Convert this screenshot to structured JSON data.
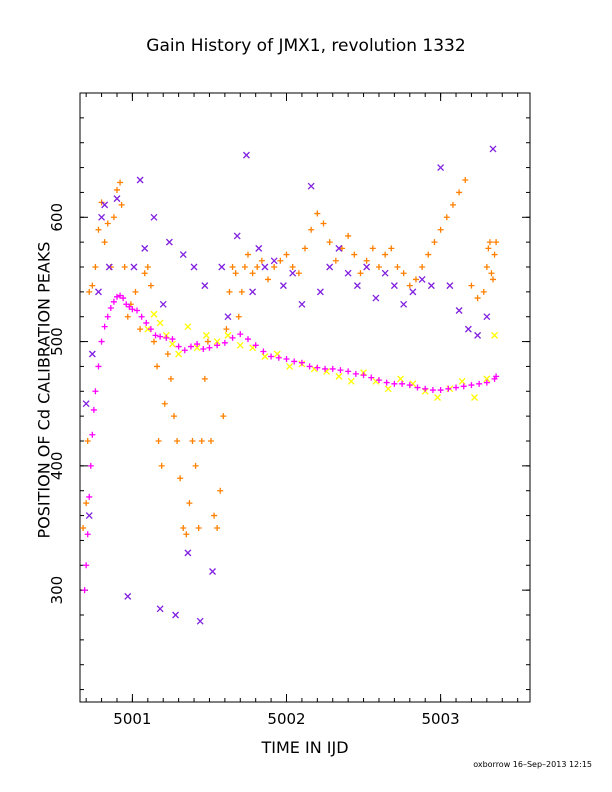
{
  "chart_data": {
    "type": "scatter",
    "title": "Gain History of JMX1, revolution 1332",
    "xlabel": "TIME IN IJD",
    "ylabel": "POSITION OF Cd CALIBRATION PEAKS",
    "xlim": [
      5000.66,
      5003.58
    ],
    "ylim": [
      210,
      700
    ],
    "xticks": [
      5001,
      5002,
      5003
    ],
    "xtick_labels": [
      "5001",
      "5002",
      "5003"
    ],
    "yticks": [
      300,
      400,
      500,
      600
    ],
    "ytick_labels": [
      "300",
      "400",
      "500",
      "600"
    ],
    "grid": false,
    "series": [
      {
        "color": "#ff8000",
        "marker": "plus",
        "description_points": "orange plus markers, dense track",
        "x": [
          5000.68,
          5000.7,
          5000.71,
          5000.72,
          5000.74,
          5000.76,
          5000.78,
          5000.8,
          5000.82,
          5000.84,
          5000.86,
          5000.88,
          5000.9,
          5000.92,
          5000.93,
          5000.95,
          5000.97,
          5000.99,
          5001.02,
          5001.05,
          5001.08,
          5001.1,
          5001.12,
          5001.14,
          5001.16,
          5001.17,
          5001.19,
          5001.21,
          5001.23,
          5001.25,
          5001.27,
          5001.29,
          5001.31,
          5001.33,
          5001.35,
          5001.37,
          5001.39,
          5001.41,
          5001.43,
          5001.45,
          5001.47,
          5001.49,
          5001.51,
          5001.53,
          5001.55,
          5001.57,
          5001.59,
          5001.61,
          5001.63,
          5001.65,
          5001.67,
          5001.69,
          5001.71,
          5001.73,
          5001.75,
          5001.78,
          5001.81,
          5001.84,
          5001.88,
          5001.92,
          5001.96,
          5002.0,
          5002.04,
          5002.08,
          5002.12,
          5002.16,
          5002.2,
          5002.24,
          5002.28,
          5002.32,
          5002.36,
          5002.4,
          5002.44,
          5002.48,
          5002.52,
          5002.56,
          5002.6,
          5002.64,
          5002.68,
          5002.72,
          5002.76,
          5002.8,
          5002.84,
          5002.88,
          5002.92,
          5002.96,
          5003.0,
          5003.04,
          5003.08,
          5003.12,
          5003.16,
          5003.2,
          5003.24,
          5003.28,
          5003.3,
          5003.31,
          5003.32,
          5003.33,
          5003.34,
          5003.35,
          5003.36
        ],
        "y": [
          350,
          370,
          420,
          540,
          545,
          560,
          590,
          612,
          580,
          595,
          560,
          600,
          622,
          628,
          610,
          560,
          520,
          530,
          540,
          510,
          555,
          560,
          545,
          500,
          480,
          420,
          400,
          450,
          490,
          470,
          440,
          420,
          390,
          350,
          345,
          370,
          420,
          400,
          350,
          420,
          470,
          500,
          420,
          360,
          350,
          380,
          440,
          510,
          540,
          560,
          555,
          520,
          540,
          560,
          570,
          555,
          560,
          565,
          550,
          560,
          565,
          570,
          560,
          555,
          575,
          590,
          603,
          595,
          580,
          565,
          575,
          585,
          570,
          555,
          565,
          575,
          560,
          570,
          575,
          560,
          555,
          545,
          550,
          560,
          570,
          580,
          590,
          600,
          610,
          620,
          630,
          545,
          535,
          540,
          560,
          575,
          580,
          555,
          550,
          570,
          580
        ]
      },
      {
        "color": "#ffff00",
        "marker": "x",
        "x": [
          5001.1,
          5001.14,
          5001.18,
          5001.22,
          5001.26,
          5001.3,
          5001.36,
          5001.42,
          5001.48,
          5001.55,
          5001.62,
          5001.7,
          5001.78,
          5001.86,
          5001.94,
          5002.02,
          5002.1,
          5002.18,
          5002.26,
          5002.34,
          5002.42,
          5002.5,
          5002.58,
          5002.66,
          5002.74,
          5002.82,
          5002.9,
          5002.98,
          5003.06,
          5003.14,
          5003.22,
          5003.3,
          5003.35
        ],
        "y": [
          510,
          522,
          515,
          505,
          498,
          490,
          512,
          495,
          505,
          500,
          505,
          497,
          495,
          488,
          490,
          480,
          482,
          478,
          476,
          472,
          468,
          475,
          468,
          462,
          470,
          466,
          460,
          455,
          462,
          468,
          455,
          470,
          505
        ]
      },
      {
        "color": "#8020e0",
        "marker": "x",
        "x": [
          5000.7,
          5000.72,
          5000.74,
          5000.78,
          5000.8,
          5000.82,
          5000.85,
          5000.9,
          5000.97,
          5001.01,
          5001.05,
          5001.08,
          5001.14,
          5001.18,
          5001.2,
          5001.24,
          5001.28,
          5001.33,
          5001.36,
          5001.4,
          5001.44,
          5001.47,
          5001.52,
          5001.58,
          5001.62,
          5001.68,
          5001.74,
          5001.78,
          5001.82,
          5001.86,
          5001.92,
          5001.98,
          5002.04,
          5002.1,
          5002.16,
          5002.22,
          5002.28,
          5002.34,
          5002.4,
          5002.46,
          5002.52,
          5002.58,
          5002.64,
          5002.7,
          5002.76,
          5002.82,
          5002.88,
          5002.94,
          5003.0,
          5003.06,
          5003.12,
          5003.18,
          5003.24,
          5003.3,
          5003.34
        ],
        "y": [
          450,
          360,
          490,
          540,
          600,
          610,
          560,
          615,
          295,
          560,
          630,
          575,
          600,
          285,
          530,
          580,
          280,
          570,
          330,
          560,
          275,
          545,
          315,
          560,
          520,
          585,
          650,
          540,
          575,
          560,
          565,
          545,
          555,
          530,
          625,
          540,
          560,
          575,
          555,
          545,
          560,
          535,
          555,
          545,
          530,
          540,
          550,
          545,
          640,
          545,
          525,
          510,
          505,
          520,
          655
        ]
      },
      {
        "color": "#ff00ff",
        "marker": "plus",
        "x": [
          5000.69,
          5000.7,
          5000.71,
          5000.72,
          5000.73,
          5000.74,
          5000.75,
          5000.76,
          5000.78,
          5000.8,
          5000.82,
          5000.84,
          5000.86,
          5000.88,
          5000.9,
          5000.92,
          5000.94,
          5000.96,
          5000.98,
          5001.0,
          5001.03,
          5001.06,
          5001.09,
          5001.12,
          5001.15,
          5001.18,
          5001.22,
          5001.26,
          5001.3,
          5001.34,
          5001.38,
          5001.42,
          5001.46,
          5001.5,
          5001.55,
          5001.6,
          5001.65,
          5001.7,
          5001.75,
          5001.8,
          5001.85,
          5001.9,
          5001.95,
          5002.0,
          5002.05,
          5002.1,
          5002.15,
          5002.2,
          5002.25,
          5002.3,
          5002.35,
          5002.4,
          5002.45,
          5002.5,
          5002.55,
          5002.6,
          5002.65,
          5002.7,
          5002.75,
          5002.8,
          5002.85,
          5002.9,
          5002.95,
          5003.0,
          5003.05,
          5003.1,
          5003.15,
          5003.2,
          5003.25,
          5003.3,
          5003.35,
          5003.36
        ],
        "y": [
          300,
          320,
          345,
          375,
          400,
          425,
          445,
          460,
          480,
          500,
          512,
          520,
          527,
          532,
          536,
          537,
          535,
          530,
          528,
          526,
          525,
          520,
          515,
          510,
          505,
          504,
          503,
          502,
          496,
          493,
          496,
          498,
          494,
          495,
          497,
          499,
          503,
          506,
          502,
          497,
          492,
          488,
          487,
          486,
          484,
          483,
          480,
          479,
          478,
          478,
          477,
          476,
          474,
          473,
          471,
          469,
          467,
          466,
          466,
          465,
          463,
          462,
          461,
          461,
          462,
          463,
          464,
          465,
          466,
          467,
          470,
          472
        ]
      }
    ]
  },
  "footer": "oxborrow 16–Sep–2013 12:15"
}
